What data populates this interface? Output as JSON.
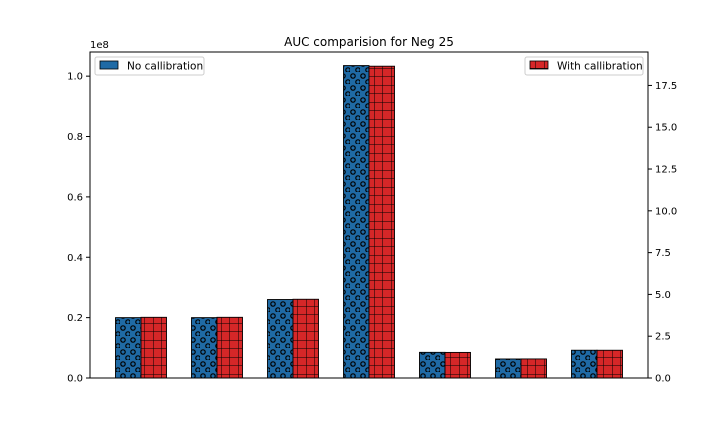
{
  "chart_data": {
    "type": "bar",
    "title": "AUC comparision for Neg 25",
    "xlabel": "",
    "ylabel_left": "",
    "ylabel_right": "",
    "categories": [
      "",
      "",
      "",
      "",
      "",
      "",
      ""
    ],
    "left_axis": {
      "ylim": [
        0,
        1.08
      ],
      "multiplier_label": "1e8",
      "ticks": [
        0.0,
        0.2,
        0.4,
        0.6,
        0.8,
        1.0
      ],
      "tick_labels": [
        "0.0",
        "0.2",
        "0.4",
        "0.6",
        "0.8",
        "1.0"
      ]
    },
    "right_axis": {
      "ylim": [
        0,
        19.5
      ],
      "ticks": [
        0.0,
        2.5,
        5.0,
        7.5,
        10.0,
        12.5,
        15.0,
        17.5
      ],
      "tick_labels": [
        "0.0",
        "2.5",
        "5.0",
        "7.5",
        "10.0",
        "12.5",
        "15.0",
        "17.5"
      ]
    },
    "series": [
      {
        "name": "No callibration",
        "axis": "left",
        "color": "#1f6aa5",
        "hatch": "circles",
        "values": [
          0.2,
          0.2,
          0.26,
          1.035,
          0.085,
          0.063,
          0.092
        ]
      },
      {
        "name": "With callibration",
        "axis": "right",
        "color": "#d62728",
        "hatch": "grid",
        "values": [
          3.63,
          3.63,
          4.71,
          18.65,
          1.53,
          1.14,
          1.66
        ]
      }
    ],
    "legend": {
      "left_series_placement": "top-left",
      "right_series_placement": "top-right"
    },
    "grid": false
  }
}
